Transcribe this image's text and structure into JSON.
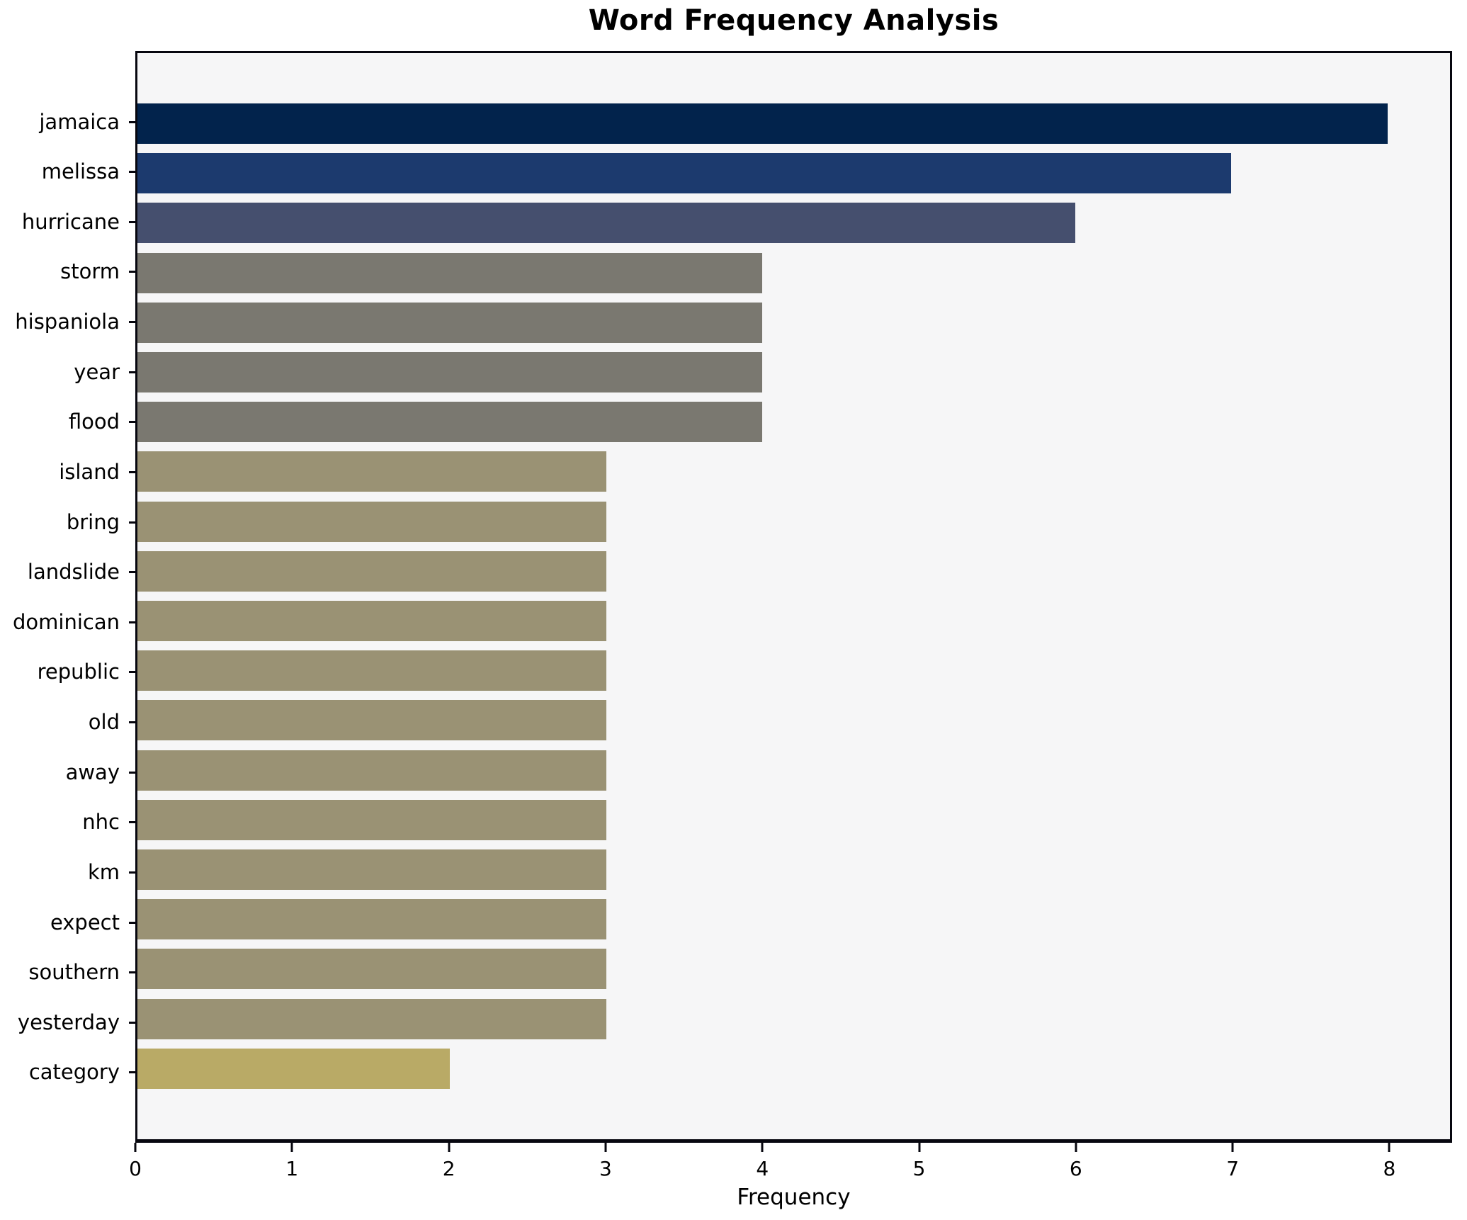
{
  "figure": {
    "title": "Word Frequency Analysis",
    "xlabel": "Frequency"
  },
  "chart_data": {
    "type": "bar",
    "orientation": "horizontal",
    "title": "Word Frequency Analysis",
    "xlabel": "Frequency",
    "ylabel": "",
    "categories": [
      "jamaica",
      "melissa",
      "hurricane",
      "storm",
      "hispaniola",
      "year",
      "flood",
      "island",
      "bring",
      "landslide",
      "dominican",
      "republic",
      "old",
      "away",
      "nhc",
      "km",
      "expect",
      "southern",
      "yesterday",
      "category"
    ],
    "values": [
      8,
      7,
      6,
      4,
      4,
      4,
      4,
      3,
      3,
      3,
      3,
      3,
      3,
      3,
      3,
      3,
      3,
      3,
      3,
      2
    ],
    "bar_colors": [
      "#02234c",
      "#1c3a6e",
      "#454f6e",
      "#7a7870",
      "#7a7870",
      "#7a7870",
      "#7a7870",
      "#9a9274",
      "#9a9274",
      "#9a9274",
      "#9a9274",
      "#9a9274",
      "#9a9274",
      "#9a9274",
      "#9a9274",
      "#9a9274",
      "#9a9274",
      "#9a9274",
      "#9a9274",
      "#b9aa66"
    ],
    "xlim": [
      0,
      8.4
    ],
    "xticks": [
      0,
      1,
      2,
      3,
      4,
      5,
      6,
      7,
      8
    ],
    "grid": false,
    "legend": null,
    "plot_background": "#f6f6f7",
    "figure_background": "#ffffff",
    "spine_color": "#07070f"
  }
}
